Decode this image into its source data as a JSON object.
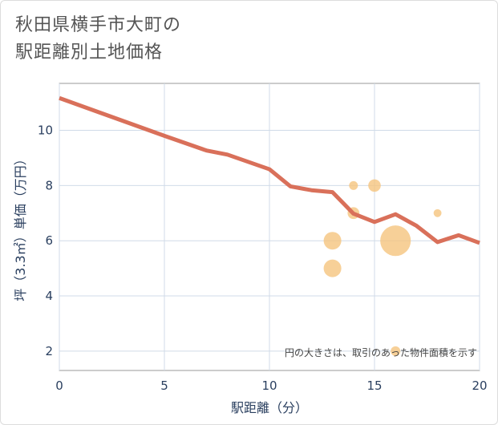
{
  "title_lines": [
    "秋田県横手市大町の",
    "駅距離別土地価格"
  ],
  "chart_data": {
    "type": "line+scatter",
    "title": "秋田県横手市大町の駅距離別土地価格",
    "xlabel": "駅距離（分）",
    "ylabel": "坪（3.3㎡）単価（万円）",
    "xlim": [
      0,
      20
    ],
    "ylim": [
      1.3,
      11.7
    ],
    "xticks": [
      0,
      5,
      10,
      15,
      20
    ],
    "yticks": [
      2,
      4,
      6,
      8,
      10
    ],
    "grid": true,
    "line_color": "#d9705a",
    "bubble_color": "#f5c47e",
    "line": {
      "x": [
        0,
        5,
        7,
        8,
        10,
        11,
        12,
        13,
        14,
        15,
        16,
        17,
        18,
        19,
        20
      ],
      "y": [
        11.17,
        9.8,
        9.27,
        9.12,
        8.59,
        7.97,
        7.83,
        7.76,
        6.98,
        6.68,
        6.96,
        6.54,
        5.95,
        6.2,
        5.92
      ]
    },
    "bubbles": [
      {
        "x": 13,
        "y": 6,
        "size": 4
      },
      {
        "x": 13,
        "y": 5,
        "size": 4
      },
      {
        "x": 14,
        "y": 8,
        "size": 1
      },
      {
        "x": 15,
        "y": 8,
        "size": 2
      },
      {
        "x": 14,
        "y": 7,
        "size": 1.8
      },
      {
        "x": 16,
        "y": 6,
        "size": 12
      },
      {
        "x": 18,
        "y": 7,
        "size": 0.8
      },
      {
        "x": 16,
        "y": 2,
        "size": 1.2
      }
    ],
    "annotation": "円の大きさは、取引のあった物件面積を示す"
  }
}
